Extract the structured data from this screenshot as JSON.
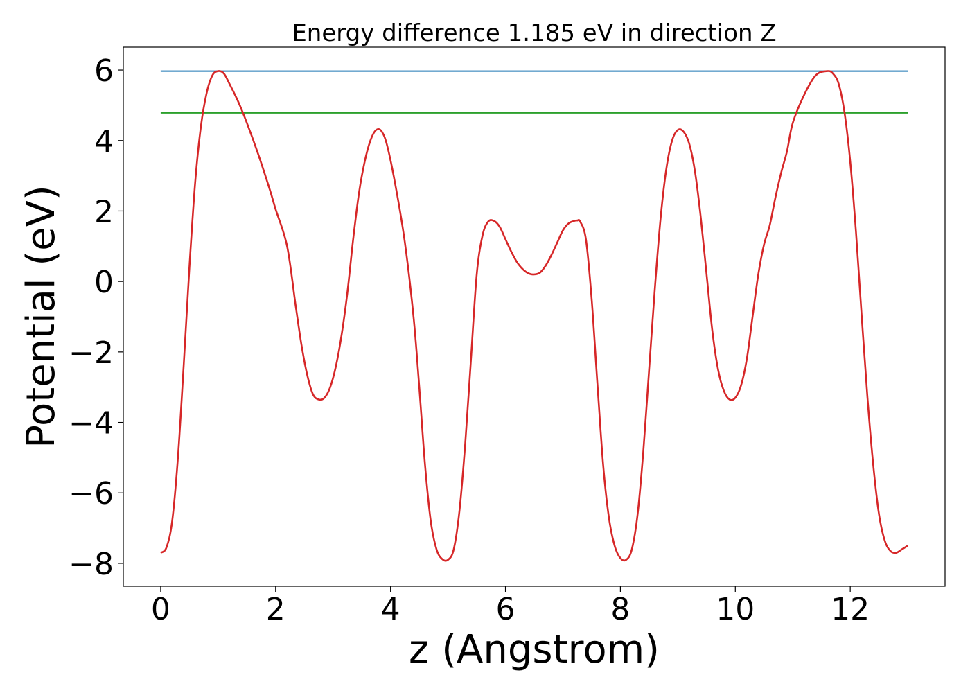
{
  "chart_data": {
    "type": "line",
    "title": "Energy difference 1.185 eV in direction Z",
    "xlabel": "z (Angstrom)",
    "ylabel": "Potential (eV)",
    "xlim": [
      -0.65,
      13.65
    ],
    "ylim": [
      -8.65,
      6.65
    ],
    "xticks": [
      0,
      2,
      4,
      6,
      8,
      10,
      12
    ],
    "yticks": [
      6,
      4,
      2,
      0,
      -2,
      -4,
      -6,
      -8
    ],
    "xtick_labels": [
      "0",
      "2",
      "4",
      "6",
      "8",
      "10",
      "12"
    ],
    "ytick_labels": [
      "6",
      "4",
      "2",
      "0",
      "−2",
      "−4",
      "−6",
      "−8"
    ],
    "grid": false,
    "colors": {
      "potential": "#d62728",
      "max_line": "#1f77b4",
      "level_line": "#2ca02c"
    },
    "series": [
      {
        "key": "potential",
        "x": [
          0,
          0.1,
          0.2,
          0.3,
          0.4,
          0.5,
          0.6,
          0.7,
          0.8,
          0.9,
          1.0,
          1.1,
          1.2,
          1.35,
          1.5,
          1.7,
          1.9,
          2.0,
          2.2,
          2.35,
          2.45,
          2.55,
          2.65,
          2.75,
          2.85,
          2.95,
          3.05,
          3.15,
          3.25,
          3.35,
          3.45,
          3.55,
          3.65,
          3.75,
          3.85,
          3.95,
          4.1,
          4.25,
          4.4,
          4.5,
          4.6,
          4.7,
          4.8,
          4.9,
          5.0,
          5.1,
          5.2,
          5.3,
          5.4,
          5.5,
          5.6,
          5.7,
          5.8,
          5.9,
          6.0,
          6.1,
          6.2,
          6.3,
          6.4,
          6.5,
          6.6,
          6.7,
          6.8,
          6.9,
          7.0,
          7.1,
          7.2,
          7.25,
          7.3,
          7.4,
          7.5,
          7.6,
          7.7,
          7.8,
          7.9,
          8.0,
          8.1,
          8.2,
          8.3,
          8.4,
          8.5,
          8.6,
          8.7,
          8.8,
          8.9,
          9.0,
          9.1,
          9.2,
          9.3,
          9.4,
          9.5,
          9.6,
          9.7,
          9.8,
          9.9,
          10.0,
          10.1,
          10.2,
          10.3,
          10.4,
          10.5,
          10.6,
          10.7,
          10.8,
          10.9,
          11.0,
          11.2,
          11.4,
          11.6,
          11.7,
          11.8,
          11.9,
          12.0,
          12.1,
          12.2,
          12.3,
          12.4,
          12.5,
          12.6,
          12.7,
          12.8,
          12.9,
          13.0
        ],
        "y": [
          -7.7,
          -7.55,
          -6.8,
          -5.0,
          -2.4,
          0.4,
          2.8,
          4.4,
          5.35,
          5.85,
          5.97,
          5.9,
          5.6,
          5.1,
          4.5,
          3.6,
          2.6,
          2.05,
          1.0,
          -0.7,
          -1.8,
          -2.65,
          -3.2,
          -3.35,
          -3.3,
          -3.0,
          -2.4,
          -1.5,
          -0.3,
          1.2,
          2.5,
          3.4,
          4.0,
          4.3,
          4.25,
          3.8,
          2.6,
          1.1,
          -1.0,
          -3.0,
          -5.2,
          -6.8,
          -7.6,
          -7.88,
          -7.9,
          -7.6,
          -6.5,
          -4.6,
          -2.2,
          0.2,
          1.3,
          1.7,
          1.72,
          1.55,
          1.2,
          0.85,
          0.55,
          0.35,
          0.23,
          0.2,
          0.25,
          0.45,
          0.75,
          1.1,
          1.45,
          1.65,
          1.72,
          1.73,
          1.7,
          1.2,
          -0.5,
          -2.9,
          -5.2,
          -6.7,
          -7.5,
          -7.85,
          -7.9,
          -7.6,
          -6.6,
          -4.8,
          -2.5,
          -0.2,
          1.8,
          3.2,
          4.0,
          4.3,
          4.25,
          3.9,
          3.1,
          1.8,
          0.2,
          -1.4,
          -2.5,
          -3.1,
          -3.35,
          -3.3,
          -2.95,
          -2.2,
          -1.0,
          0.2,
          1.05,
          1.6,
          2.4,
          3.1,
          3.7,
          4.5,
          5.3,
          5.85,
          5.97,
          5.9,
          5.6,
          4.8,
          3.4,
          1.4,
          -1.0,
          -3.3,
          -5.2,
          -6.6,
          -7.35,
          -7.65,
          -7.7,
          -7.6,
          -7.5
        ],
        "_note_trim": 0
      },
      {
        "key": "max_line",
        "x": [
          0,
          13.0
        ],
        "y": [
          5.97,
          5.97
        ]
      },
      {
        "key": "level_line",
        "x": [
          0,
          13.0
        ],
        "y": [
          4.785,
          4.785
        ]
      }
    ]
  }
}
